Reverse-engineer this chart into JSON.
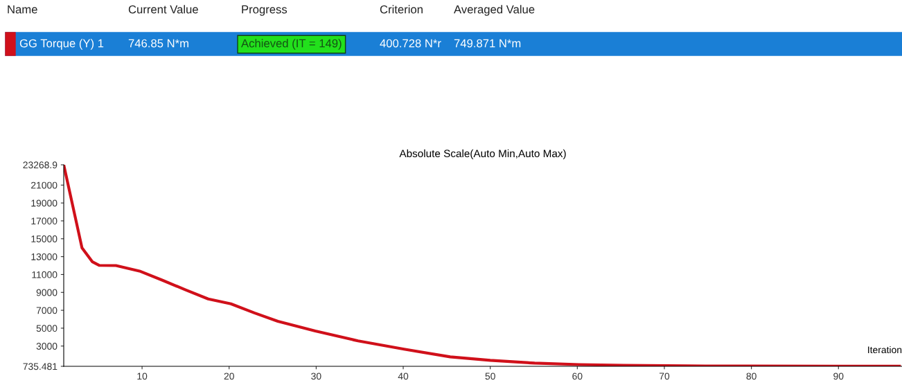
{
  "chart_data": {
    "type": "line",
    "title": "Absolute Scale(Auto Min,Auto Max)",
    "xlabel": "Iteration",
    "x": [
      1,
      3.1,
      4.3,
      5.1,
      7,
      9.7,
      12.3,
      15,
      17.6,
      20.2,
      22.9,
      25.6,
      29.9,
      34.8,
      40.1,
      45.4,
      50,
      55.1,
      60.2,
      65.3,
      72.7,
      80,
      90,
      97
    ],
    "series": [
      {
        "color": "#d0101a",
        "values": [
          23268.9,
          13970,
          12410,
          12020,
          12000,
          11390,
          10380,
          9280,
          8270,
          7720,
          6710,
          5770,
          4680,
          3580,
          2650,
          1790,
          1400,
          1090,
          930,
          850,
          780,
          760,
          750,
          747
        ]
      }
    ],
    "xlim": [
      1,
      97.3
    ],
    "xticks": [
      10,
      20,
      30,
      40,
      50,
      60,
      70,
      80,
      90
    ],
    "ylim": [
      735.481,
      23268.9
    ],
    "yticks": [
      735.481,
      3000,
      5000,
      7000,
      9000,
      11000,
      13000,
      15000,
      17000,
      19000,
      21000,
      23268.9
    ],
    "grid": false,
    "legend": false,
    "marker": "none",
    "line_style": "solid",
    "annotations": [
      "Name",
      "Current Value",
      "Progress",
      "Criterion",
      "Averaged Value",
      "GG Torque (Y) 1",
      "746.85 N*m",
      "Achieved (IT = 149)",
      "400.728 N*r",
      "749.871 N*m"
    ]
  }
}
